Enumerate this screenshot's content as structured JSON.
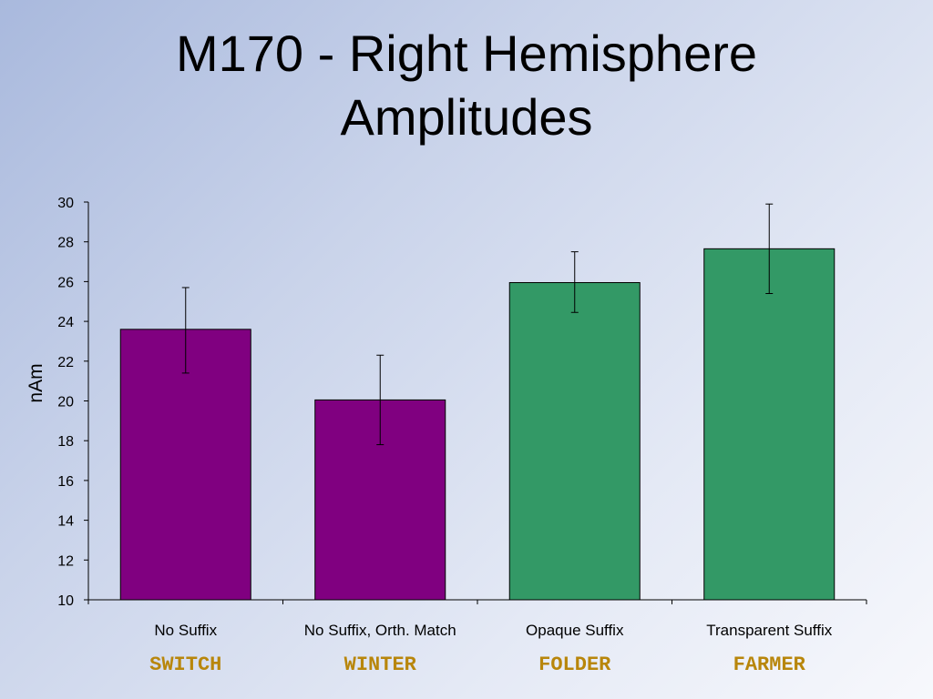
{
  "title_line1": "M170 - Right Hemisphere",
  "title_line2": "Amplitudes",
  "example_word_color": "#b8860b",
  "chart_data": {
    "type": "bar",
    "title": "M170 - Right Hemisphere Amplitudes",
    "xlabel": "",
    "ylabel": "nAm",
    "ylim": [
      10,
      30
    ],
    "yticks": [
      10,
      12,
      14,
      16,
      18,
      20,
      22,
      24,
      26,
      28,
      30
    ],
    "grid": false,
    "error_bars": true,
    "categories": [
      "No Suffix",
      "No Suffix, Orth. Match",
      "Opaque Suffix",
      "Transparent Suffix"
    ],
    "example_words": [
      "SWITCH",
      "WINTER",
      "FOLDER",
      "FARMER"
    ],
    "values": [
      23.6,
      20.05,
      25.95,
      27.65
    ],
    "error_low": [
      21.4,
      17.8,
      24.45,
      25.4
    ],
    "error_high": [
      25.7,
      22.3,
      27.5,
      29.9
    ],
    "colors": [
      "#800080",
      "#800080",
      "#339966",
      "#339966"
    ]
  }
}
